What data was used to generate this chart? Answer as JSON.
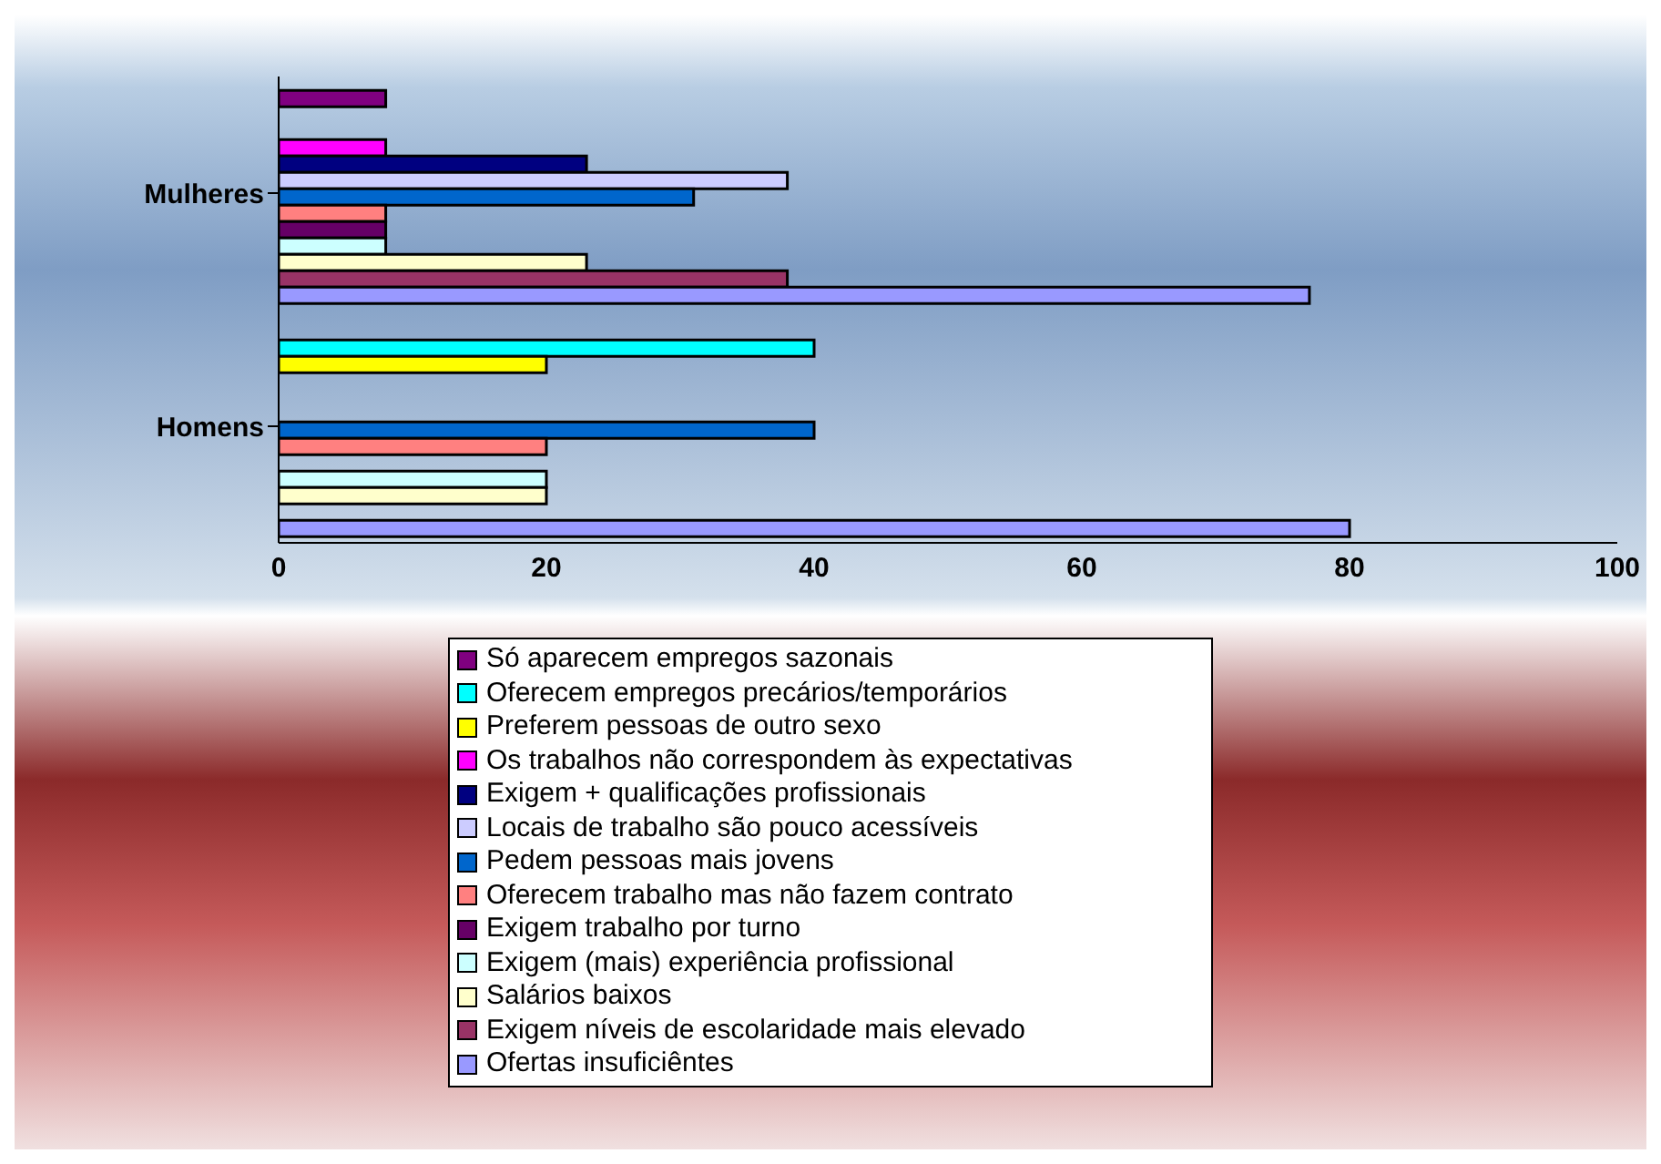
{
  "chart_data": {
    "type": "bar",
    "orientation": "horizontal",
    "categories": [
      "Mulheres",
      "Homens"
    ],
    "series": [
      {
        "name": "Só aparecem empregos sazonais",
        "color": "#800080",
        "values": [
          8,
          0
        ]
      },
      {
        "name": "Oferecem empregos precários/temporários",
        "color": "#00ffff",
        "values": [
          0,
          40
        ]
      },
      {
        "name": "Preferem pessoas de outro sexo",
        "color": "#ffff00",
        "values": [
          0,
          20
        ]
      },
      {
        "name": "Os trabalhos não correspondem às expectativas",
        "color": "#ff00ff",
        "values": [
          8,
          0
        ]
      },
      {
        "name": "Exigem + qualificações profissionais",
        "color": "#000080",
        "values": [
          23,
          0
        ]
      },
      {
        "name": "Locais de trabalho são pouco acessíveis",
        "color": "#ccccff",
        "values": [
          38,
          0
        ]
      },
      {
        "name": "Pedem pessoas mais jovens",
        "color": "#0066cc",
        "values": [
          31,
          40
        ]
      },
      {
        "name": "Oferecem trabalho mas não fazem contrato",
        "color": "#ff8080",
        "values": [
          8,
          20
        ]
      },
      {
        "name": "Exigem trabalho por turno",
        "color": "#660066",
        "values": [
          8,
          0
        ]
      },
      {
        "name": "Exigem (mais) experiência profissional",
        "color": "#ccffff",
        "values": [
          8,
          20
        ]
      },
      {
        "name": "Salários baixos",
        "color": "#ffffcc",
        "values": [
          23,
          20
        ]
      },
      {
        "name": "Exigem níveis de escolaridade mais elevado",
        "color": "#993366",
        "values": [
          38,
          0
        ]
      },
      {
        "name": "Ofertas insuficiêntes",
        "color": "#9999ff",
        "values": [
          77,
          80
        ]
      }
    ],
    "xlim": [
      0,
      100
    ],
    "xticks": [
      0,
      20,
      40,
      60,
      80,
      100
    ],
    "grid": false,
    "legend": "bottom"
  }
}
